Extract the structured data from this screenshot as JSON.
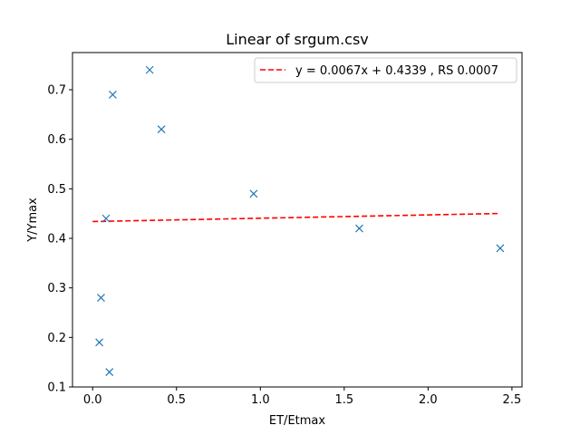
{
  "chart_data": {
    "type": "scatter",
    "title": "Linear of srgum.csv",
    "xlabel": "ET/Etmax",
    "ylabel": "Y/Ymax",
    "xlim": [
      -0.12,
      2.56
    ],
    "ylim": [
      0.1,
      0.775
    ],
    "xticks": [
      0.0,
      0.5,
      1.0,
      1.5,
      2.0,
      2.5
    ],
    "xtick_labels": [
      "0.0",
      "0.5",
      "1.0",
      "1.5",
      "2.0",
      "2.5"
    ],
    "yticks": [
      0.1,
      0.2,
      0.3,
      0.4,
      0.5,
      0.6,
      0.7
    ],
    "ytick_labels": [
      "0.1",
      "0.2",
      "0.3",
      "0.4",
      "0.5",
      "0.6",
      "0.7"
    ],
    "grid": false,
    "legend_position": "top-right",
    "series": [
      {
        "kind": "scatter",
        "marker": "x",
        "color": "#1f77b4",
        "x": [
          0.34,
          0.12,
          0.41,
          0.96,
          0.08,
          1.59,
          0.05,
          2.43,
          0.04,
          0.1
        ],
        "y": [
          0.74,
          0.69,
          0.62,
          0.49,
          0.44,
          0.42,
          0.28,
          0.38,
          0.19,
          0.13
        ]
      },
      {
        "name": "y = 0.0067x + 0.4339 , RS 0.0007",
        "kind": "line",
        "style": "dashed",
        "color": "#ff0000",
        "x": [
          0.0,
          2.43
        ],
        "y": [
          0.4339,
          0.4502
        ]
      }
    ]
  }
}
